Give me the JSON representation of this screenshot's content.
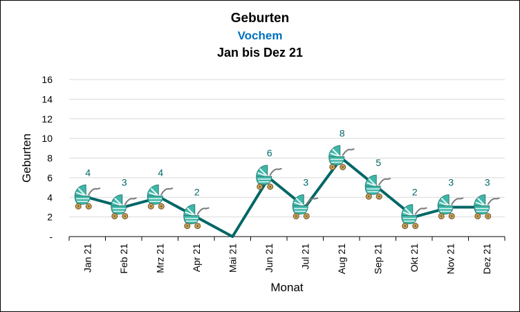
{
  "chart_data": {
    "type": "line",
    "title": "Geburten",
    "subtitle": "Vochem",
    "period": "Jan bis Dez 21",
    "xlabel": "Monat",
    "ylabel": "Geburten",
    "categories": [
      "Jan 21",
      "Feb 21",
      "Mrz 21",
      "Apr 21",
      "Mai 21",
      "Jun 21",
      "Jul 21",
      "Aug 21",
      "Sep 21",
      "Okt 21",
      "Nov 21",
      "Dez 21"
    ],
    "values": [
      4,
      3,
      4,
      2,
      0,
      6,
      3,
      8,
      5,
      2,
      3,
      3
    ],
    "data_labels": [
      "4",
      "3",
      "4",
      "2",
      "",
      "6",
      "3",
      "8",
      "5",
      "2",
      "3",
      "3"
    ],
    "ylim": [
      0,
      16
    ],
    "yticks": [
      0,
      2,
      4,
      6,
      8,
      10,
      12,
      14,
      16
    ],
    "ytick_labels": [
      "-",
      "2",
      "4",
      "6",
      "8",
      "10",
      "12",
      "14",
      "16"
    ],
    "grid": true,
    "marker": "baby-carriage-icon",
    "colors": {
      "line": "#006666",
      "subtitle": "#0070C0",
      "data_label": "#006666",
      "grid": "#d9d9d9",
      "carriage_body": "#3fb6a8",
      "carriage_stripe": "#e8f7f4",
      "carriage_wheel": "#c9a15a"
    }
  }
}
